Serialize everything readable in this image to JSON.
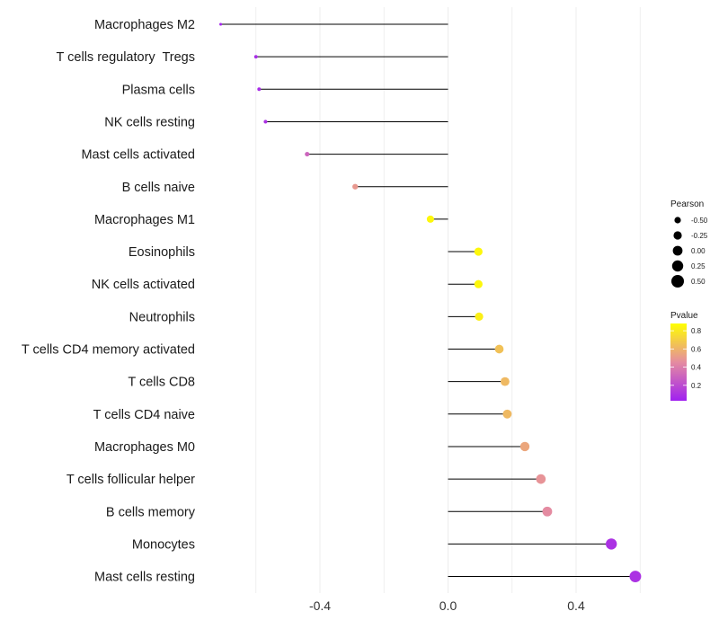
{
  "chart_data": {
    "type": "lollipop",
    "title": "",
    "xlabel": "",
    "ylabel": "",
    "xlim": [
      -0.72,
      0.62
    ],
    "x_ticks": [
      -0.4,
      0.0,
      0.4
    ],
    "x_tick_labels": [
      "-0.4",
      "0.0",
      "0.4"
    ],
    "grid": true,
    "colors": {
      "low": "#a020f0",
      "mid": "#e58ca0",
      "high": "#ffff00"
    },
    "categories": [
      "Macrophages M2",
      "T cells regulatory  Tregs",
      "Plasma cells",
      "NK cells resting",
      "Mast cells activated",
      "B cells naive",
      "Macrophages M1",
      "Eosinophils",
      "NK cells activated",
      "Neutrophils",
      "T cells CD4 memory activated",
      "T cells CD8",
      "T cells CD4 naive",
      "Macrophages M0",
      "T cells follicular helper",
      "B cells memory",
      "Monocytes",
      "Mast cells resting"
    ],
    "values": [
      -0.71,
      -0.6,
      -0.59,
      -0.57,
      -0.44,
      -0.29,
      -0.055,
      0.095,
      0.095,
      0.097,
      0.16,
      0.178,
      0.185,
      0.24,
      0.29,
      0.31,
      0.51,
      0.585
    ],
    "pvalues": [
      0.05,
      0.08,
      0.08,
      0.1,
      0.3,
      0.5,
      0.85,
      0.85,
      0.85,
      0.82,
      0.65,
      0.62,
      0.62,
      0.55,
      0.48,
      0.45,
      0.1,
      0.1
    ],
    "legend_size": {
      "title": "Pearson",
      "labels": [
        "-0.50",
        "-0.25",
        "0.00",
        "0.25",
        "0.50"
      ],
      "values": [
        -0.5,
        -0.25,
        0.0,
        0.25,
        0.5
      ]
    },
    "legend_color": {
      "title": "Pvalue",
      "labels": [
        "0.8",
        "0.6",
        "0.4",
        "0.2"
      ],
      "values": [
        0.8,
        0.6,
        0.4,
        0.2
      ],
      "range": [
        0.03,
        0.88
      ]
    },
    "legend_position": "right"
  }
}
